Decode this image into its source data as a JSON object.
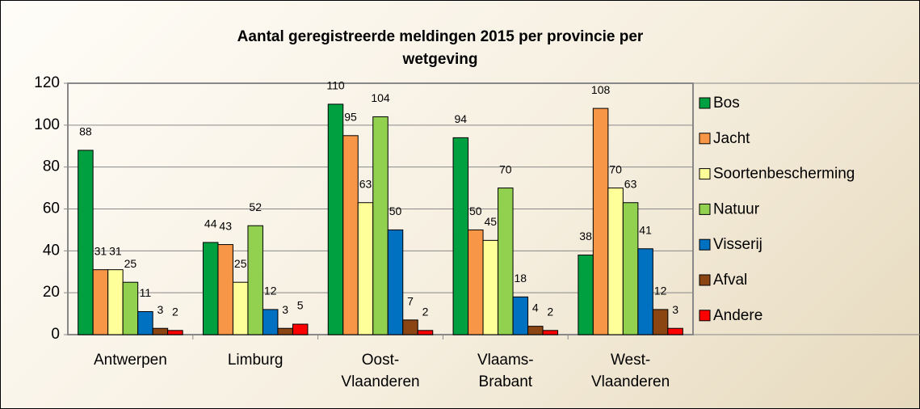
{
  "chart_data": {
    "type": "bar",
    "title": "Aantal geregistreerde meldingen 2015 per provincie per wetgeving",
    "categories": [
      "Antwerpen",
      "Limburg",
      "Oost-Vlaanderen",
      "Vlaams-Brabant",
      "West-Vlaanderen"
    ],
    "series": [
      {
        "name": "Bos",
        "color": "#00a040",
        "values": [
          88,
          44,
          110,
          94,
          38
        ]
      },
      {
        "name": "Jacht",
        "color": "#f79646",
        "values": [
          31,
          43,
          95,
          50,
          108
        ]
      },
      {
        "name": "Soortenbescherming",
        "color": "#ffff99",
        "values": [
          31,
          25,
          63,
          45,
          70
        ]
      },
      {
        "name": "Natuur",
        "color": "#92d050",
        "values": [
          25,
          52,
          104,
          70,
          63
        ]
      },
      {
        "name": "Visserij",
        "color": "#0070c0",
        "values": [
          11,
          12,
          50,
          18,
          41
        ]
      },
      {
        "name": "Afval",
        "color": "#8b4513",
        "values": [
          3,
          3,
          7,
          4,
          12
        ]
      },
      {
        "name": "Andere",
        "color": "#ff0000",
        "values": [
          2,
          5,
          2,
          2,
          3
        ]
      }
    ],
    "ylim": [
      0,
      120
    ],
    "yticks": [
      0,
      20,
      40,
      60,
      80,
      100,
      120
    ],
    "grid": true,
    "legend": "right"
  }
}
